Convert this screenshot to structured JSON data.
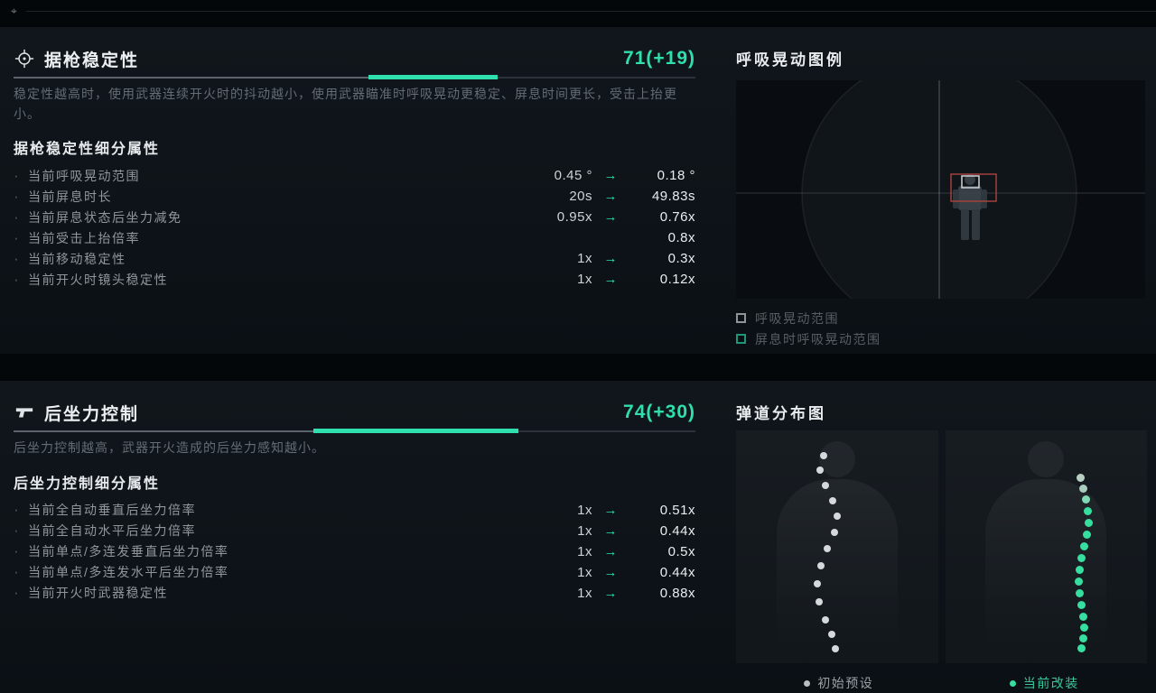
{
  "colors": {
    "accent": "#2fe0ae",
    "danger": "#a2423c",
    "preset_dot": "#d6d9dc",
    "modified_dot": "#36df9f"
  },
  "icons": {
    "arrow": "→",
    "bullet": "·",
    "top_marker": "⌖"
  },
  "stability_panel": {
    "title": "据枪稳定性",
    "value": "71(+19)",
    "bar": {
      "base_pct": 52,
      "bonus_pct": 19
    },
    "description": "稳定性越高时，使用武器连续开火时的抖动越小，使用武器瞄准时呼吸晃动更稳定、屏息时间更长，受击上抬更小。",
    "subtitle": "据枪稳定性细分属性",
    "attributes": [
      {
        "label": "当前呼吸晃动范围",
        "from": "0.45 °",
        "to": "0.18 °"
      },
      {
        "label": "当前屏息时长",
        "from": "20s",
        "to": "49.83s"
      },
      {
        "label": "当前屏息状态后坐力减免",
        "from": "0.95x",
        "to": "0.76x"
      },
      {
        "label": "当前受击上抬倍率",
        "to": "0.8x"
      },
      {
        "label": "当前移动稳定性",
        "from": "1x",
        "to": "0.3x"
      },
      {
        "label": "当前开火时镜头稳定性",
        "from": "1x",
        "to": "0.12x"
      }
    ]
  },
  "breathing_panel": {
    "title": "呼吸晃动图例",
    "legend": [
      {
        "label": "呼吸晃动范围",
        "swatch": "gray"
      },
      {
        "label": "屏息时呼吸晃动范围",
        "swatch": "teal"
      },
      {
        "label": "",
        "swatch": "teal"
      }
    ]
  },
  "recoil_panel": {
    "title": "后坐力控制",
    "value": "74(+30)",
    "bar": {
      "base_pct": 44,
      "bonus_pct": 30
    },
    "description": "后坐力控制越高，武器开火造成的后坐力感知越小。",
    "subtitle": "后坐力控制细分属性",
    "attributes": [
      {
        "label": "当前全自动垂直后坐力倍率",
        "from": "1x",
        "to": "0.51x"
      },
      {
        "label": "当前全自动水平后坐力倍率",
        "from": "1x",
        "to": "0.44x"
      },
      {
        "label": "当前单点/多连发垂直后坐力倍率",
        "from": "1x",
        "to": "0.5x"
      },
      {
        "label": "当前单点/多连发水平后坐力倍率",
        "from": "1x",
        "to": "0.44x"
      },
      {
        "label": "当前开火时武器稳定性",
        "from": "1x",
        "to": "0.88x"
      }
    ]
  },
  "ballistics_panel": {
    "title": "弹道分布图",
    "legend": [
      {
        "label": "初始预设",
        "color": "#9aa0a6",
        "dot": "#b9bec3"
      },
      {
        "label": "当前改装",
        "color": "#39c79b",
        "dot": "#36df9f"
      }
    ],
    "preset_dots": [
      [
        93,
        24
      ],
      [
        89,
        40
      ],
      [
        95,
        57
      ],
      [
        103,
        74
      ],
      [
        108,
        91
      ],
      [
        105,
        109
      ],
      [
        97,
        127
      ],
      [
        90,
        146
      ],
      [
        86,
        166
      ],
      [
        88,
        186
      ],
      [
        95,
        206
      ],
      [
        102,
        222
      ],
      [
        106,
        238
      ]
    ],
    "modified_dots": [
      [
        145,
        48,
        "#b9cfc4"
      ],
      [
        148,
        60,
        "#a8cdbd"
      ],
      [
        151,
        72,
        "#7fdab4"
      ],
      [
        153,
        85
      ],
      [
        154,
        98
      ],
      [
        152,
        111
      ],
      [
        149,
        124
      ],
      [
        146,
        137
      ],
      [
        144,
        150
      ],
      [
        143,
        163
      ],
      [
        144,
        176
      ],
      [
        146,
        189
      ],
      [
        148,
        202
      ],
      [
        149,
        214
      ],
      [
        148,
        226
      ],
      [
        146,
        237
      ]
    ]
  }
}
